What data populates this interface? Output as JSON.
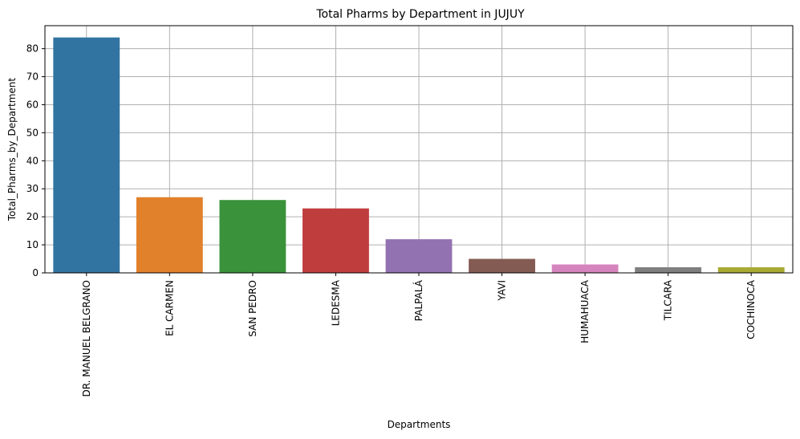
{
  "chart_data": {
    "type": "bar",
    "title": "Total Pharms by Department in JUJUY",
    "xlabel": "Departments",
    "ylabel": "Total_Pharms_by_Department",
    "categories": [
      "DR. MANUEL BELGRANO",
      "EL CARMEN",
      "SAN PEDRO",
      "LEDESMA",
      "PALPALÁ",
      "YAVI",
      "HUMAHUACA",
      "TILCARA",
      "COCHINOCA"
    ],
    "values": [
      84,
      27,
      26,
      23,
      12,
      5,
      3,
      2,
      2
    ],
    "colors": [
      "#3274a1",
      "#e1812c",
      "#3a923a",
      "#c03d3e",
      "#9372b2",
      "#845b53",
      "#d684bd",
      "#7f7f7f",
      "#a9aa35"
    ],
    "ylim": [
      0,
      88.2
    ],
    "yticks": [
      0,
      10,
      20,
      30,
      40,
      50,
      60,
      70,
      80
    ],
    "grid": true,
    "legend": "none"
  }
}
